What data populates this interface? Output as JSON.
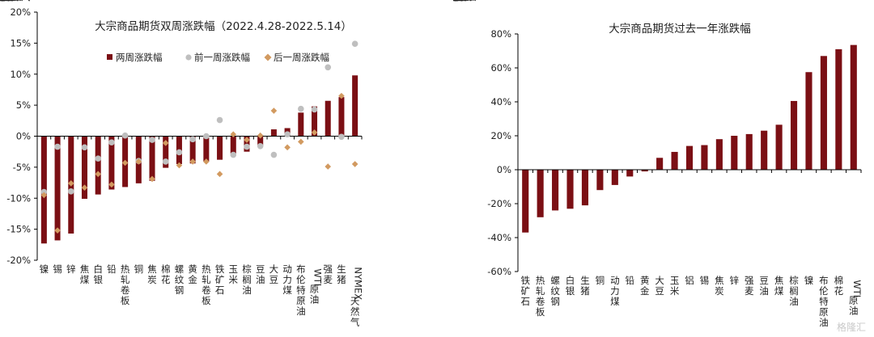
{
  "colors": {
    "bar": "#7B0F14",
    "prev_dot": "#BFBFBF",
    "next_diamond": "#D29A60",
    "axis": "#000000"
  },
  "watermark": "格隆汇",
  "chart_data": [
    {
      "type": "bar",
      "title": "大宗商品期货双周涨跌幅（2022.4.28-2022.5.14）",
      "ylim": [
        -0.2,
        0.2
      ],
      "yticks": [
        "20%",
        "15%",
        "10%",
        "5%",
        "0%",
        "-5%",
        "-10%",
        "-15%",
        "-20%"
      ],
      "legend_position": "top-right",
      "categories": [
        "镍",
        "锡",
        "锌",
        "焦煤",
        "白银",
        "铅",
        "热轧卷板",
        "铜",
        "焦炭",
        "棉花",
        "螺纹钢",
        "黄金",
        "热轧卷板",
        "铁矿石",
        "玉米",
        "棕榈油",
        "豆油",
        "大豆",
        "动力煤",
        "布伦特原油",
        "WTI原油",
        "强麦",
        "生猪",
        "NYMEX天然气"
      ],
      "series": [
        {
          "name": "两周涨跌幅",
          "kind": "bar",
          "values": [
            -0.173,
            -0.168,
            -0.157,
            -0.101,
            -0.094,
            -0.086,
            -0.082,
            -0.076,
            -0.072,
            -0.051,
            -0.045,
            -0.044,
            -0.041,
            -0.038,
            -0.028,
            -0.025,
            -0.015,
            0.011,
            0.013,
            0.038,
            0.048,
            0.057,
            0.063,
            0.098
          ]
        },
        {
          "name": "前一周涨跌幅",
          "kind": "dot",
          "values": [
            -0.09,
            -0.017,
            -0.089,
            -0.018,
            -0.036,
            -0.01,
            0.001,
            -0.04,
            -0.006,
            -0.041,
            -0.026,
            -0.005,
            0.0,
            0.026,
            -0.03,
            -0.017,
            -0.016,
            -0.03,
            0.003,
            0.044,
            0.043,
            0.111,
            -0.001,
            0.149
          ]
        },
        {
          "name": "后一周涨跌幅",
          "kind": "diamond",
          "values": [
            -0.095,
            -0.152,
            -0.076,
            -0.083,
            -0.061,
            -0.078,
            -0.043,
            -0.041,
            -0.069,
            -0.011,
            -0.047,
            -0.041,
            -0.041,
            -0.061,
            0.003,
            -0.006,
            0.001,
            0.041,
            -0.018,
            -0.009,
            0.006,
            -0.049,
            0.065,
            -0.045
          ]
        }
      ]
    },
    {
      "type": "bar",
      "title": "大宗商品期货过去一年涨跌幅",
      "ylim": [
        -0.6,
        0.8
      ],
      "yticks": [
        "80%",
        "60%",
        "40%",
        "20%",
        "0%",
        "-20%",
        "-40%",
        "-60%"
      ],
      "categories": [
        "铁矿石",
        "热轧卷板",
        "螺纹钢",
        "白银",
        "生猪",
        "铜",
        "动力煤",
        "铅",
        "黄金",
        "大豆",
        "玉米",
        "铝",
        "锡",
        "焦炭",
        "锌",
        "强麦",
        "豆油",
        "焦煤",
        "棕榈油",
        "镍",
        "布伦特原油",
        "棉花",
        "WTI原油"
      ],
      "series": [
        {
          "name": "",
          "kind": "bar",
          "values": [
            -0.37,
            -0.28,
            -0.24,
            -0.23,
            -0.21,
            -0.12,
            -0.09,
            -0.04,
            -0.01,
            0.07,
            0.105,
            0.14,
            0.145,
            0.18,
            0.2,
            0.21,
            0.23,
            0.265,
            0.405,
            0.575,
            0.67,
            0.71,
            0.735
          ]
        }
      ]
    }
  ]
}
